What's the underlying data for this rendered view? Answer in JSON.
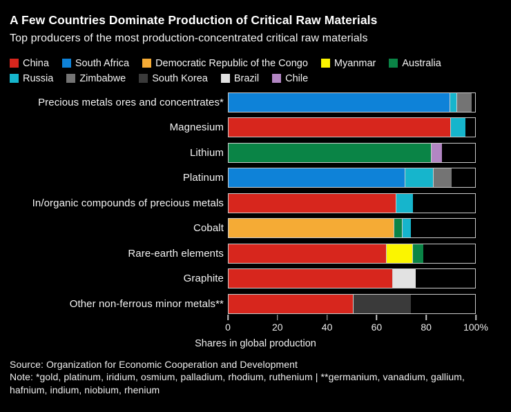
{
  "header": {
    "title": "A Few Countries Dominate Production of Critical Raw Materials",
    "subtitle": "Top producers of the most production-concentrated critical raw materials"
  },
  "colors": {
    "background": "#000000",
    "text": "#ffffff",
    "bar_border": "#cdcdcd",
    "tick": "#c4c4c4"
  },
  "legend": {
    "rows": [
      [
        {
          "label": "China",
          "color": "#d7261d"
        },
        {
          "label": "South Africa",
          "color": "#0e82d8"
        },
        {
          "label": "Democratic Republic of the Congo",
          "color": "#f5ab35"
        },
        {
          "label": "Myanmar",
          "color": "#fbf500"
        },
        {
          "label": "Australia",
          "color": "#0a8446"
        }
      ],
      [
        {
          "label": "Russia",
          "color": "#16b5cc"
        },
        {
          "label": "Zimbabwe",
          "color": "#747474"
        },
        {
          "label": "South Korea",
          "color": "#3a3a3a"
        },
        {
          "label": "Brazil",
          "color": "#e2e2e2"
        },
        {
          "label": "Chile",
          "color": "#b286c3"
        }
      ]
    ]
  },
  "chart_data": {
    "type": "bar",
    "stacked": true,
    "orientation": "horizontal",
    "unit": "percent share",
    "xlabel": "Shares in global production",
    "xlim": [
      0,
      100
    ],
    "x_ticks": [
      0,
      20,
      40,
      60,
      80,
      100
    ],
    "x_tick_labels": [
      "0",
      "20",
      "40",
      "60",
      "80",
      "100%"
    ],
    "grid": false,
    "legend_position": "top",
    "categories": [
      "Precious metals ores and concentrates*",
      "Magnesium",
      "Lithium",
      "Platinum",
      "In/organic compounds of precious metals",
      "Cobalt",
      "Rare-earth elements",
      "Graphite",
      "Other non-ferrous minor metals**"
    ],
    "bars": [
      {
        "category": "Precious metals ores and concentrates*",
        "segments": [
          {
            "country": "South Africa",
            "value": 89
          },
          {
            "country": "Russia",
            "value": 3
          },
          {
            "country": "Zimbabwe",
            "value": 6
          }
        ]
      },
      {
        "category": "Magnesium",
        "segments": [
          {
            "country": "China",
            "value": 89.5
          },
          {
            "country": "Russia",
            "value": 6
          }
        ]
      },
      {
        "category": "Lithium",
        "segments": [
          {
            "country": "Australia",
            "value": 81.5
          },
          {
            "country": "Chile",
            "value": 4.5
          }
        ]
      },
      {
        "category": "Platinum",
        "segments": [
          {
            "country": "South Africa",
            "value": 71
          },
          {
            "country": "Russia",
            "value": 11.5
          },
          {
            "country": "Zimbabwe",
            "value": 7.5
          }
        ]
      },
      {
        "category": "In/organic compounds of precious metals",
        "segments": [
          {
            "country": "China",
            "value": 67.5
          },
          {
            "country": "Russia",
            "value": 7
          }
        ]
      },
      {
        "category": "Cobalt",
        "segments": [
          {
            "country": "Democratic Republic of the Congo",
            "value": 66.5
          },
          {
            "country": "Australia",
            "value": 3.5
          },
          {
            "country": "Russia",
            "value": 3.5
          }
        ]
      },
      {
        "category": "Rare-earth elements",
        "segments": [
          {
            "country": "China",
            "value": 63.5
          },
          {
            "country": "Myanmar",
            "value": 10.5
          },
          {
            "country": "Australia",
            "value": 4.5
          }
        ]
      },
      {
        "category": "Graphite",
        "segments": [
          {
            "country": "China",
            "value": 66
          },
          {
            "country": "Brazil",
            "value": 9.5
          }
        ]
      },
      {
        "category": "Other non-ferrous minor metals**",
        "segments": [
          {
            "country": "China",
            "value": 50
          },
          {
            "country": "South Korea",
            "value": 23.5
          }
        ]
      }
    ]
  },
  "footer": {
    "source": "Source: Organization for Economic Cooperation and Development",
    "note": "Note: *gold, platinum, iridium, osmium, palladium, rhodium, ruthenium | **germanium, vanadium, gallium, hafnium, indium, niobium, rhenium"
  }
}
